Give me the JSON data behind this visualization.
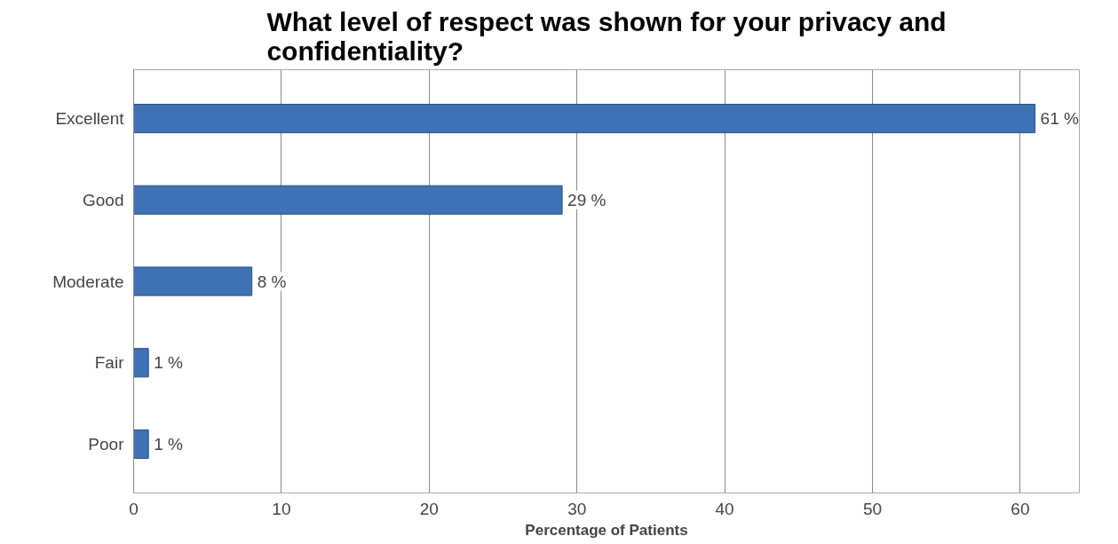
{
  "chart_data": {
    "type": "bar",
    "orientation": "horizontal",
    "title": "What level of respect was shown for your privacy and confidentiality?",
    "xlabel": "Percentage of Patients",
    "categories": [
      "Excellent",
      "Good",
      "Moderate",
      "Fair",
      "Poor"
    ],
    "values": [
      61,
      29,
      8,
      1,
      1
    ],
    "value_labels": [
      "61 %",
      "29 %",
      "8 %",
      "1 %",
      "1 %"
    ],
    "color": "#3e72b4",
    "xlim": [
      0,
      64
    ],
    "xticks": [
      0,
      10,
      20,
      30,
      40,
      50,
      60
    ],
    "grid": "x"
  }
}
